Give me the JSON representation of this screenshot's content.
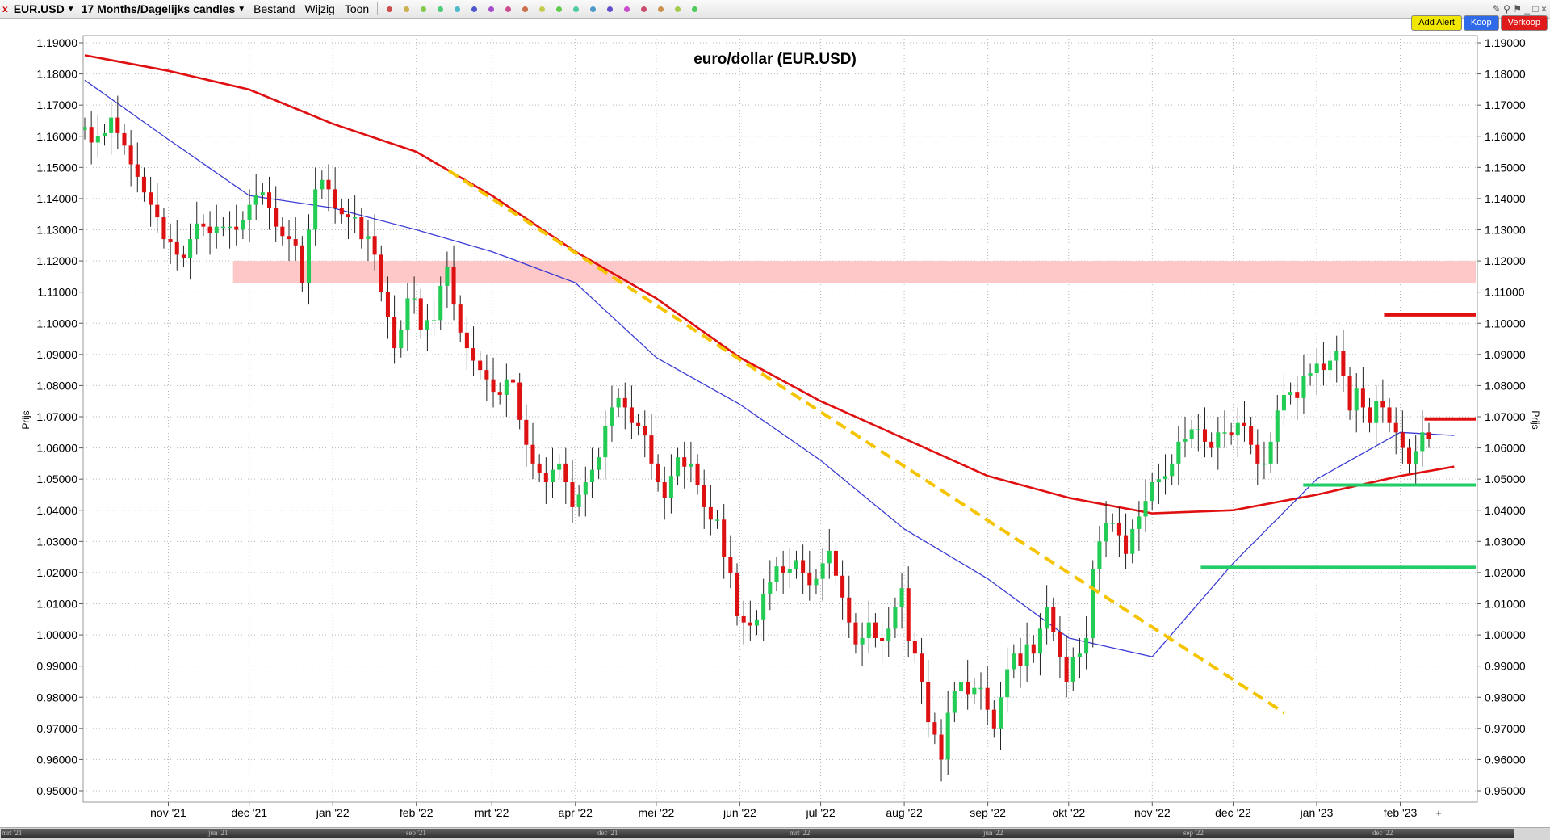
{
  "toolbar": {
    "close": "x",
    "instrument": "EUR.USD",
    "timeframe": "17 Months/Dagelijks candles",
    "menu_bestand": "Bestand",
    "menu_wijzig": "Wijzig",
    "menu_toon": "Toon",
    "icons": [
      "close-icon",
      "draw-line-icon",
      "pen-icon",
      "pie-icon",
      "go-icon",
      "crosshair-icon",
      "text-icon",
      "box-icon",
      "undo-icon",
      "redo-icon",
      "star-icon",
      "x-icon",
      "zoom-in-icon",
      "zoom-out-icon",
      "compare-icon",
      "scroll-icon",
      "bar-icon",
      "palette-icon",
      "settings-icon",
      "wrench-icon"
    ],
    "add_alert": "Add Alert",
    "koop": "Koop",
    "verkoop": "Verkoop",
    "colors": {
      "add_alert": "#f1e600",
      "koop": "#2f6be8",
      "verkoop": "#e01b1b"
    }
  },
  "chart_data": {
    "type": "candlestick",
    "title": "euro/dollar (EUR.USD)",
    "ylabel_left": "Prijs",
    "ylabel_right": "Prijs",
    "y_ticks": [
      "1.19000",
      "1.18000",
      "1.17000",
      "1.16000",
      "1.15000",
      "1.14000",
      "1.13000",
      "1.12000",
      "1.11000",
      "1.10000",
      "1.09000",
      "1.08000",
      "1.07000",
      "1.06000",
      "1.05000",
      "1.04000",
      "1.03000",
      "1.02000",
      "1.01000",
      "1.00000",
      "0.99000",
      "0.98000",
      "0.97000",
      "0.96000",
      "0.95000"
    ],
    "ylim": [
      0.947,
      1.195
    ],
    "x_tick_labels": [
      "nov '21",
      "dec '21",
      "jan '22",
      "feb '22",
      "mrt '22",
      "apr '22",
      "mei '22",
      "jun '22",
      "jul '22",
      "aug '22",
      "sep '22",
      "okt '22",
      "nov '22",
      "dec '22",
      "jan '23",
      "feb '23"
    ],
    "x_range": [
      "2021-10-01",
      "2023-03-01"
    ],
    "grid": true,
    "candle_colors": {
      "up": "#22cc55",
      "down": "#dd1111"
    },
    "series": [
      {
        "kind": "candles",
        "close": [
          1.163,
          1.158,
          1.16,
          1.161,
          1.166,
          1.161,
          1.157,
          1.151,
          1.147,
          1.142,
          1.138,
          1.134,
          1.127,
          1.126,
          1.122,
          1.121,
          1.127,
          1.132,
          1.131,
          1.129,
          1.131,
          1.131,
          1.131,
          1.13,
          1.133,
          1.138,
          1.141,
          1.142,
          1.137,
          1.131,
          1.128,
          1.127,
          1.125,
          1.113,
          1.13,
          1.143,
          1.146,
          1.143,
          1.137,
          1.135,
          1.134,
          1.134,
          1.127,
          1.128,
          1.122,
          1.11,
          1.102,
          1.092,
          1.098,
          1.108,
          1.108,
          1.098,
          1.101,
          1.101,
          1.112,
          1.118,
          1.106,
          1.097,
          1.092,
          1.088,
          1.085,
          1.082,
          1.078,
          1.077,
          1.082,
          1.081,
          1.069,
          1.061,
          1.055,
          1.052,
          1.049,
          1.053,
          1.055,
          1.049,
          1.041,
          1.045,
          1.049,
          1.053,
          1.057,
          1.067,
          1.073,
          1.076,
          1.073,
          1.068,
          1.067,
          1.064,
          1.055,
          1.049,
          1.044,
          1.051,
          1.057,
          1.054,
          1.055,
          1.048,
          1.041,
          1.037,
          1.037,
          1.025,
          1.02,
          1.006,
          1.004,
          1.003,
          1.005,
          1.013,
          1.017,
          1.022,
          1.02,
          1.021,
          1.024,
          1.02,
          1.016,
          1.018,
          1.023,
          1.027,
          1.019,
          1.012,
          1.004,
          0.997,
          0.999,
          1.004,
          0.999,
          0.998,
          1.002,
          1.009,
          1.015,
          0.998,
          0.994,
          0.985,
          0.972,
          0.968,
          0.96,
          0.975,
          0.982,
          0.985,
          0.981,
          0.983,
          0.983,
          0.976,
          0.97,
          0.98,
          0.989,
          0.994,
          0.99,
          0.997,
          0.994,
          1.002,
          1.009,
          1.001,
          0.993,
          0.985,
          0.993,
          0.994,
          0.999,
          1.021,
          1.03,
          1.036,
          1.036,
          1.032,
          1.026,
          1.034,
          1.038,
          1.043,
          1.049,
          1.05,
          1.051,
          1.055,
          1.062,
          1.063,
          1.066,
          1.066,
          1.062,
          1.06,
          1.065,
          1.065,
          1.064,
          1.068,
          1.067,
          1.061,
          1.055,
          1.055,
          1.062,
          1.072,
          1.077,
          1.078,
          1.076,
          1.083,
          1.084,
          1.087,
          1.085,
          1.088,
          1.091,
          1.083,
          1.072,
          1.079,
          1.073,
          1.068,
          1.075,
          1.073,
          1.068,
          1.065,
          1.06,
          1.055,
          1.059,
          1.065,
          1.063
        ],
        "open": [
          1.162,
          1.163,
          1.158,
          1.16,
          1.161,
          1.166,
          1.161,
          1.157,
          1.151,
          1.147,
          1.142,
          1.138,
          1.134,
          1.127,
          1.126,
          1.122,
          1.121,
          1.127,
          1.132,
          1.131,
          1.129,
          1.131,
          1.131,
          1.131,
          1.13,
          1.133,
          1.138,
          1.141,
          1.142,
          1.137,
          1.131,
          1.128,
          1.127,
          1.125,
          1.113,
          1.13,
          1.143,
          1.146,
          1.143,
          1.137,
          1.135,
          1.134,
          1.134,
          1.127,
          1.128,
          1.122,
          1.11,
          1.102,
          1.092,
          1.098,
          1.108,
          1.108,
          1.098,
          1.101,
          1.101,
          1.112,
          1.118,
          1.106,
          1.097,
          1.092,
          1.088,
          1.085,
          1.082,
          1.078,
          1.077,
          1.082,
          1.081,
          1.069,
          1.061,
          1.055,
          1.052,
          1.049,
          1.053,
          1.055,
          1.049,
          1.041,
          1.045,
          1.049,
          1.053,
          1.057,
          1.067,
          1.073,
          1.076,
          1.073,
          1.068,
          1.067,
          1.064,
          1.055,
          1.049,
          1.044,
          1.051,
          1.057,
          1.054,
          1.055,
          1.048,
          1.041,
          1.037,
          1.037,
          1.025,
          1.02,
          1.006,
          1.004,
          1.003,
          1.005,
          1.013,
          1.017,
          1.022,
          1.02,
          1.021,
          1.024,
          1.02,
          1.016,
          1.018,
          1.023,
          1.027,
          1.019,
          1.012,
          1.004,
          0.997,
          0.999,
          1.004,
          0.999,
          0.998,
          1.002,
          1.009,
          1.015,
          0.998,
          0.994,
          0.985,
          0.972,
          0.968,
          0.96,
          0.975,
          0.982,
          0.985,
          0.981,
          0.983,
          0.983,
          0.976,
          0.97,
          0.98,
          0.989,
          0.994,
          0.99,
          0.997,
          0.994,
          1.002,
          1.009,
          1.001,
          0.993,
          0.985,
          0.993,
          0.994,
          0.999,
          1.021,
          1.03,
          1.036,
          1.036,
          1.032,
          1.026,
          1.034,
          1.038,
          1.043,
          1.049,
          1.05,
          1.051,
          1.055,
          1.062,
          1.063,
          1.066,
          1.066,
          1.062,
          1.06,
          1.065,
          1.065,
          1.064,
          1.068,
          1.067,
          1.061,
          1.055,
          1.055,
          1.062,
          1.072,
          1.077,
          1.078,
          1.076,
          1.083,
          1.084,
          1.087,
          1.085,
          1.088,
          1.091,
          1.083,
          1.072,
          1.079,
          1.073,
          1.068,
          1.075,
          1.073,
          1.068,
          1.065,
          1.06,
          1.055,
          1.059,
          1.065
        ]
      },
      {
        "kind": "ma",
        "name": "",
        "color": "#e01010",
        "x": [
          "2021-10-01",
          "2021-11-01",
          "2021-12-01",
          "2022-01-01",
          "2022-02-01",
          "2022-03-01",
          "2022-04-01",
          "2022-05-01",
          "2022-06-01",
          "2022-07-01",
          "2022-08-01",
          "2022-09-01",
          "2022-10-01",
          "2022-11-01",
          "2022-12-01",
          "2023-01-01",
          "2023-02-01",
          "2023-02-21"
        ],
        "values": [
          1.186,
          1.181,
          1.175,
          1.164,
          1.155,
          1.141,
          1.123,
          1.108,
          1.089,
          1.075,
          1.063,
          1.051,
          1.044,
          1.039,
          1.04,
          1.045,
          1.051,
          1.054
        ]
      },
      {
        "kind": "ma",
        "name": "",
        "color": "#3b3bd6",
        "x": [
          "2021-10-01",
          "2021-11-01",
          "2021-12-01",
          "2022-01-01",
          "2022-02-01",
          "2022-03-01",
          "2022-04-01",
          "2022-05-01",
          "2022-06-01",
          "2022-07-01",
          "2022-08-01",
          "2022-09-01",
          "2022-10-01",
          "2022-11-01",
          "2022-12-01",
          "2023-01-01",
          "2023-02-01",
          "2023-02-21"
        ],
        "values": [
          1.178,
          1.159,
          1.141,
          1.137,
          1.13,
          1.123,
          1.113,
          1.089,
          1.074,
          1.056,
          1.034,
          1.018,
          0.999,
          0.993,
          1.023,
          1.05,
          1.065,
          1.064
        ]
      }
    ],
    "annotations": [
      {
        "kind": "zone",
        "from": 1.113,
        "to": 1.12,
        "x_start": "2021-11-25",
        "color": "#ffc8c8"
      },
      {
        "kind": "trendline",
        "from": {
          "x": "2022-02-13",
          "y": 1.149
        },
        "to": {
          "x": "2022-12-20",
          "y": 0.975
        },
        "color": "#f5c400",
        "dashed": true
      },
      {
        "kind": "hline",
        "y": 1.1027,
        "x_start": "2023-01-26",
        "color": "#e01010"
      },
      {
        "kind": "hline",
        "y": 1.0693,
        "x_start": "2023-02-10",
        "color": "#e01010"
      },
      {
        "kind": "hline",
        "y": 1.0481,
        "x_start": "2022-12-27",
        "color": "#22cc66"
      },
      {
        "kind": "hline",
        "y": 1.0217,
        "x_start": "2022-11-19",
        "color": "#22cc66"
      }
    ]
  },
  "scrollbar": {
    "labels": [
      "mrt '21",
      "jun '21",
      "sep '21",
      "dec '21",
      "mrt '22",
      "jun '22",
      "sep '22",
      "dec '22"
    ]
  }
}
